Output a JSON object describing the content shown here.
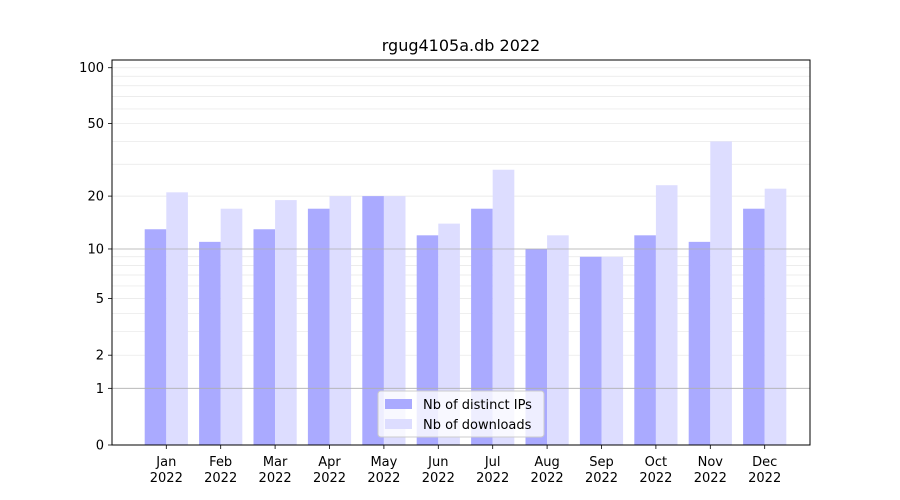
{
  "chart_data": {
    "type": "bar",
    "title": "rgug4105a.db 2022",
    "xlabel": "",
    "ylabel": "",
    "y_scale": "log(1+y)",
    "ylim": [
      0,
      110
    ],
    "y_ticks": [
      0,
      1,
      2,
      5,
      10,
      20,
      50,
      100
    ],
    "grid": true,
    "legend_position": "bottom-center",
    "categories": [
      [
        "Jan",
        "2022"
      ],
      [
        "Feb",
        "2022"
      ],
      [
        "Mar",
        "2022"
      ],
      [
        "Apr",
        "2022"
      ],
      [
        "May",
        "2022"
      ],
      [
        "Jun",
        "2022"
      ],
      [
        "Jul",
        "2022"
      ],
      [
        "Aug",
        "2022"
      ],
      [
        "Sep",
        "2022"
      ],
      [
        "Oct",
        "2022"
      ],
      [
        "Nov",
        "2022"
      ],
      [
        "Dec",
        "2022"
      ]
    ],
    "series": [
      {
        "name": "Nb of distinct IPs",
        "color": "#aaaaff",
        "values": [
          13,
          11,
          13,
          17,
          20,
          12,
          17,
          10,
          9,
          12,
          11,
          17
        ]
      },
      {
        "name": "Nb of downloads",
        "color": "#ddddff",
        "values": [
          21,
          17,
          19,
          20,
          20,
          14,
          28,
          12,
          9,
          23,
          40,
          22
        ]
      }
    ]
  }
}
